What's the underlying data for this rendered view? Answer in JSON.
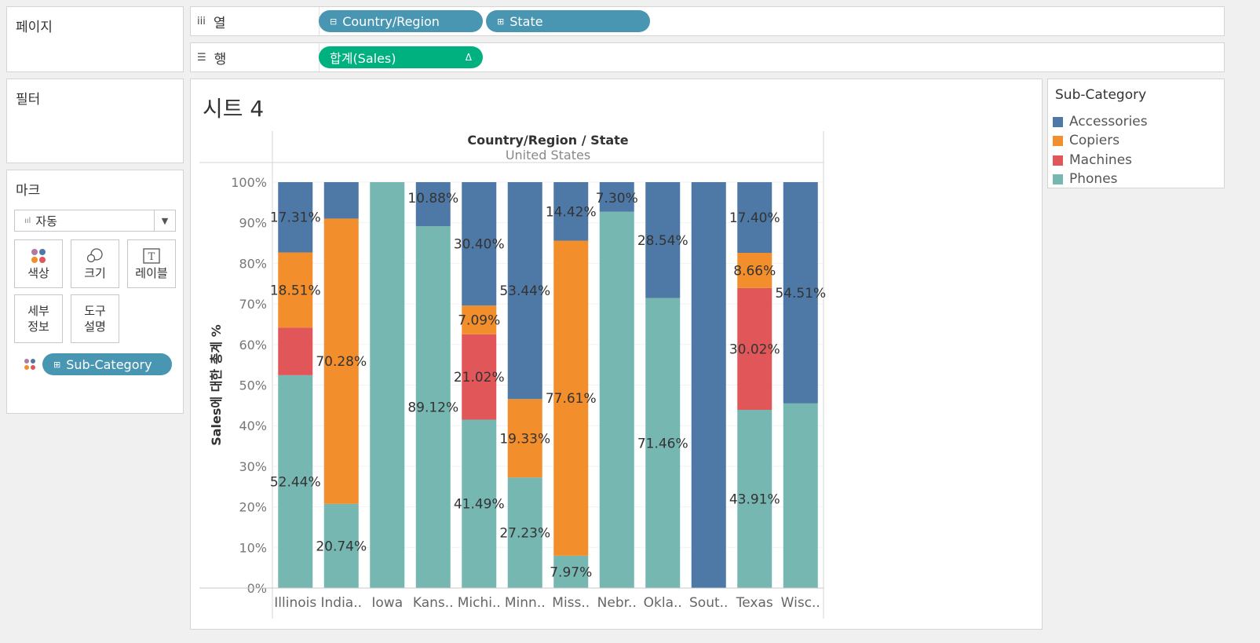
{
  "shelves": {
    "pages_label": "페이지",
    "columns_label": "열",
    "columns_icon": "columns-icon",
    "rows_label": "행",
    "rows_icon": "rows-icon",
    "columns_pills": [
      "Country/Region",
      "State"
    ],
    "rows_pill": "합계(Sales)",
    "rows_pill_delta": "Δ",
    "pill_prefix_expand": "⊞",
    "pill_prefix_collapse": "⊟",
    "pill_prefix_state": "⊞"
  },
  "filters": {
    "label": "필터"
  },
  "marks": {
    "label": "마크",
    "type_value": "자동",
    "buttons": {
      "color": "색상",
      "size": "크기",
      "label": "레이블",
      "detail_1": "세부",
      "detail_2": "정보",
      "tooltip_1": "도구",
      "tooltip_2": "설명"
    },
    "color_pill": "Sub-Category"
  },
  "sheet": {
    "title": "시트 4"
  },
  "legend": {
    "title": "Sub-Category",
    "items": [
      {
        "name": "Accessories",
        "color": "#4e79a7"
      },
      {
        "name": "Copiers",
        "color": "#f28e2b"
      },
      {
        "name": "Machines",
        "color": "#e15759"
      },
      {
        "name": "Phones",
        "color": "#76b7b2"
      }
    ]
  },
  "chart_data": {
    "type": "bar",
    "stacked": "percent-of-total",
    "header_title": "Country/Region / State",
    "header_subtitle": "United States",
    "ylabel": "Sales에 대한 총계 %",
    "ylim": [
      0,
      100
    ],
    "yticks": [
      "0%",
      "10%",
      "20%",
      "30%",
      "40%",
      "50%",
      "60%",
      "70%",
      "80%",
      "90%",
      "100%"
    ],
    "categories": [
      "Illinois",
      "India..",
      "Iowa",
      "Kans..",
      "Michi..",
      "Minn..",
      "Miss..",
      "Nebr..",
      "Okla..",
      "Sout..",
      "Texas",
      "Wisc.."
    ],
    "series": [
      {
        "name": "Phones",
        "color": "#76b7b2",
        "values": [
          52.44,
          20.74,
          100,
          89.12,
          41.49,
          27.23,
          7.97,
          92.7,
          71.46,
          0,
          43.91,
          45.49
        ]
      },
      {
        "name": "Machines",
        "color": "#e15759",
        "values": [
          11.74,
          0,
          0,
          0,
          21.02,
          0,
          0,
          0,
          0,
          0,
          30.02,
          0
        ]
      },
      {
        "name": "Copiers",
        "color": "#f28e2b",
        "values": [
          18.51,
          70.28,
          0,
          0,
          7.09,
          19.33,
          77.61,
          0,
          0,
          0,
          8.66,
          0
        ]
      },
      {
        "name": "Accessories",
        "color": "#4e79a7",
        "values": [
          17.31,
          8.98,
          0,
          10.88,
          30.4,
          53.44,
          14.42,
          7.3,
          28.54,
          100,
          17.4,
          54.51
        ]
      }
    ],
    "data_labels": [
      {
        "category": "Illinois",
        "series": "Accessories",
        "text": "17.31%"
      },
      {
        "category": "Illinois",
        "series": "Copiers",
        "text": "18.51%"
      },
      {
        "category": "Illinois",
        "series": "Phones",
        "text": "52.44%"
      },
      {
        "category": "India..",
        "series": "Copiers",
        "text": "70.28%"
      },
      {
        "category": "India..",
        "series": "Phones",
        "text": "20.74%"
      },
      {
        "category": "Kans..",
        "series": "Accessories",
        "text": "10.88%"
      },
      {
        "category": "Kans..",
        "series": "Phones",
        "text": "89.12%"
      },
      {
        "category": "Michi..",
        "series": "Accessories",
        "text": "30.40%"
      },
      {
        "category": "Michi..",
        "series": "Copiers",
        "text": "7.09%"
      },
      {
        "category": "Michi..",
        "series": "Machines",
        "text": "21.02%"
      },
      {
        "category": "Michi..",
        "series": "Phones",
        "text": "41.49%"
      },
      {
        "category": "Minn..",
        "series": "Accessories",
        "text": "53.44%"
      },
      {
        "category": "Minn..",
        "series": "Copiers",
        "text": "19.33%"
      },
      {
        "category": "Minn..",
        "series": "Phones",
        "text": "27.23%"
      },
      {
        "category": "Miss..",
        "series": "Accessories",
        "text": "14.42%"
      },
      {
        "category": "Miss..",
        "series": "Copiers",
        "text": "77.61%"
      },
      {
        "category": "Miss..",
        "series": "Phones",
        "text": "7.97%"
      },
      {
        "category": "Nebr..",
        "series": "Accessories",
        "text": "7.30%"
      },
      {
        "category": "Okla..",
        "series": "Accessories",
        "text": "28.54%"
      },
      {
        "category": "Okla..",
        "series": "Phones",
        "text": "71.46%"
      },
      {
        "category": "Texas",
        "series": "Accessories",
        "text": "17.40%"
      },
      {
        "category": "Texas",
        "series": "Copiers",
        "text": "8.66%"
      },
      {
        "category": "Texas",
        "series": "Machines",
        "text": "30.02%"
      },
      {
        "category": "Texas",
        "series": "Phones",
        "text": "43.91%"
      },
      {
        "category": "Wisc..",
        "series": "Accessories",
        "text": "54.51%"
      }
    ]
  }
}
